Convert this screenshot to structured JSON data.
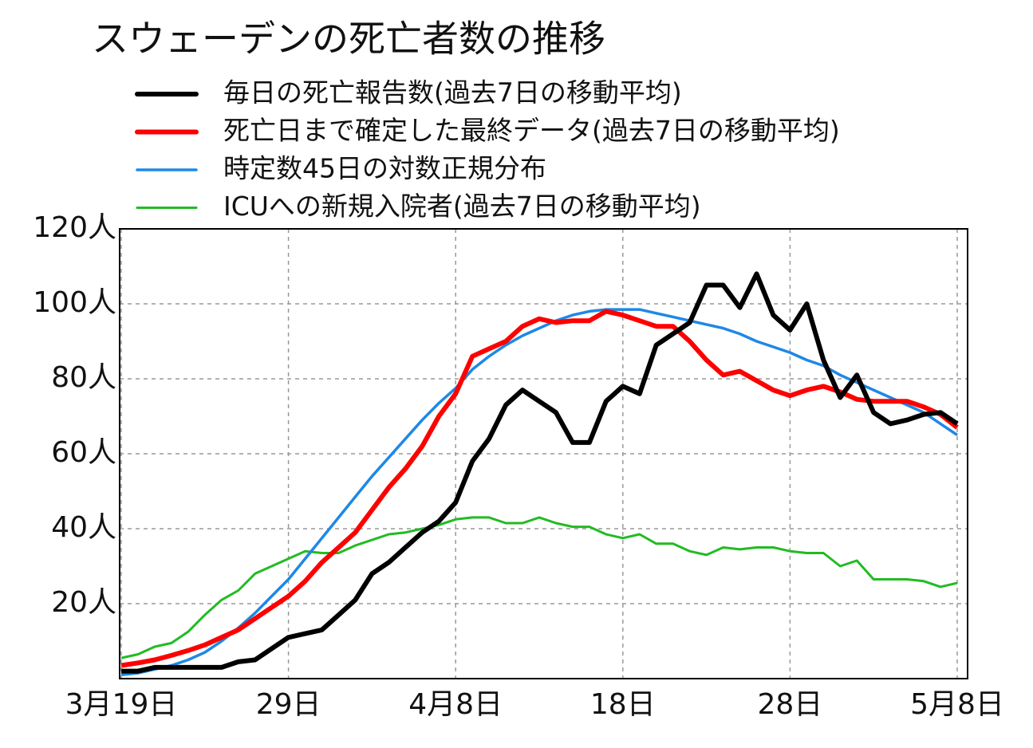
{
  "chart_data": {
    "type": "line",
    "title": "スウェーデンの死亡者数の推移",
    "categories": [
      "3月19日",
      null,
      null,
      null,
      null,
      null,
      null,
      null,
      null,
      null,
      "29日",
      null,
      null,
      null,
      null,
      null,
      null,
      null,
      null,
      null,
      "4月8日",
      null,
      null,
      null,
      null,
      null,
      null,
      null,
      null,
      null,
      "18日",
      null,
      null,
      null,
      null,
      null,
      null,
      null,
      null,
      null,
      "28日",
      null,
      null,
      null,
      null,
      null,
      null,
      null,
      null,
      null,
      "5月8日"
    ],
    "series": [
      {
        "name": "毎日の死亡報告数(過去7日の移動平均)",
        "color": "#000000",
        "values": [
          2,
          2,
          3,
          3,
          3,
          3,
          3,
          4.5,
          5,
          8,
          11,
          12,
          13,
          17,
          21,
          28,
          31,
          35,
          39,
          42,
          47,
          58,
          64,
          73,
          77,
          74,
          71,
          63,
          63,
          74,
          78,
          76,
          89,
          92,
          95,
          105,
          105,
          99,
          108,
          97,
          93,
          100,
          85,
          75,
          81,
          71,
          68,
          69,
          70.5,
          71,
          68
        ]
      },
      {
        "name": "死亡日まで確定した最終データ(過去7日の移動平均)",
        "color": "#ff0000",
        "values": [
          3.5,
          4.2,
          5,
          6.2,
          7.5,
          9,
          11,
          13,
          16,
          19,
          22,
          26,
          31,
          35,
          39,
          45,
          51,
          56,
          62,
          70,
          76,
          86,
          88,
          90,
          94,
          96,
          95,
          95.5,
          95.5,
          98,
          97,
          95.5,
          94,
          94,
          90,
          85,
          81,
          82,
          79.5,
          77,
          75.5,
          77,
          78,
          76.5,
          74.5,
          74,
          74,
          74,
          72.5,
          70.5,
          67
        ]
      },
      {
        "name": "時定数45日の対数正規分布",
        "color": "#1e88e5",
        "values": [
          1,
          1.5,
          2.5,
          3.5,
          5,
          7,
          10,
          13.5,
          17.5,
          22,
          26.5,
          32,
          37.5,
          43,
          48.5,
          54,
          59,
          64,
          69,
          73.5,
          77.5,
          82.5,
          86,
          89,
          91.5,
          93.5,
          95.5,
          97,
          98,
          98.5,
          98.5,
          98.5,
          97.5,
          96.5,
          95.5,
          94.5,
          93.5,
          92,
          90,
          88.5,
          87,
          85,
          83.5,
          81,
          79,
          77,
          75,
          73,
          71,
          68,
          65
        ]
      },
      {
        "name": "ICUへの新規入院者(過去7日の移動平均)",
        "color": "#22bb22",
        "values": [
          5.5,
          6.5,
          8.5,
          9.5,
          12.5,
          17,
          21,
          23.5,
          28,
          30,
          32,
          34,
          33.5,
          33.5,
          35.5,
          37,
          38.5,
          39,
          40,
          41,
          42.5,
          43,
          43,
          41.5,
          41.5,
          43,
          41.5,
          40.5,
          40.5,
          38.5,
          37.5,
          38.5,
          36,
          36,
          34,
          33,
          35,
          34.5,
          35,
          35,
          34,
          33.5,
          33.5,
          30,
          31.5,
          26.5,
          26.5,
          26.5,
          26,
          24.5,
          25.5
        ]
      }
    ],
    "ylim": [
      0,
      120
    ],
    "yticks": [
      {
        "value": 20,
        "label": "20人"
      },
      {
        "value": 40,
        "label": "40人"
      },
      {
        "value": 60,
        "label": "60人"
      },
      {
        "value": 80,
        "label": "80人"
      },
      {
        "value": 100,
        "label": "100人"
      },
      {
        "value": 120,
        "label": "120人"
      }
    ],
    "grid": true
  }
}
